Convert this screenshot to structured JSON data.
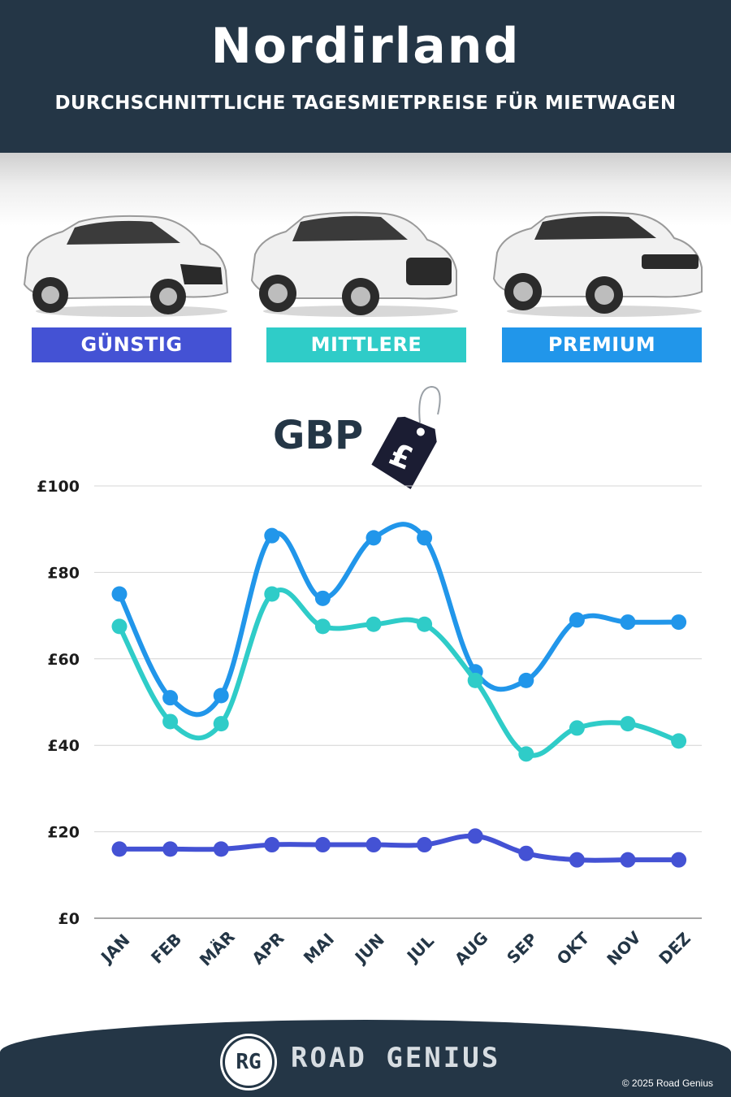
{
  "header": {
    "title": "Nordirland",
    "subtitle": "DURCHSCHNITTLICHE TAGESMIETPREISE FÜR MIETWAGEN"
  },
  "categories": [
    {
      "label": "GÜNSTIG",
      "color": "#4452d4"
    },
    {
      "label": "MITTLERE",
      "color": "#2fccc8"
    },
    {
      "label": "PREMIUM",
      "color": "#2196ea"
    }
  ],
  "currency": {
    "label": "GBP",
    "tag_symbol": "£"
  },
  "chart_data": {
    "type": "line",
    "categories": [
      "JAN",
      "FEB",
      "MÄR",
      "APR",
      "MAI",
      "JUN",
      "JUL",
      "AUG",
      "SEP",
      "OKT",
      "NOV",
      "DEZ"
    ],
    "series": [
      {
        "name": "PREMIUM",
        "color": "#2196ea",
        "values": [
          75,
          51,
          51.5,
          88.5,
          74,
          88,
          88,
          57,
          55,
          69,
          68.5,
          68.5
        ]
      },
      {
        "name": "MITTLERE",
        "color": "#2fccc8",
        "values": [
          67.5,
          45.5,
          45,
          75,
          67.5,
          68,
          68,
          55,
          38,
          44,
          45,
          41
        ]
      },
      {
        "name": "GÜNSTIG",
        "color": "#4452d4",
        "values": [
          16,
          16,
          16,
          17,
          17,
          17,
          17,
          19,
          15,
          13.5,
          13.5,
          13.5
        ]
      }
    ],
    "y_ticks": [
      "£0",
      "£20",
      "£40",
      "£60",
      "£80",
      "£100"
    ],
    "ylim": [
      0,
      100
    ],
    "grid": true
  },
  "footer": {
    "logo_initials": "RG",
    "brand": "ROAD GENIUS",
    "copyright": "© 2025 Road Genius"
  }
}
